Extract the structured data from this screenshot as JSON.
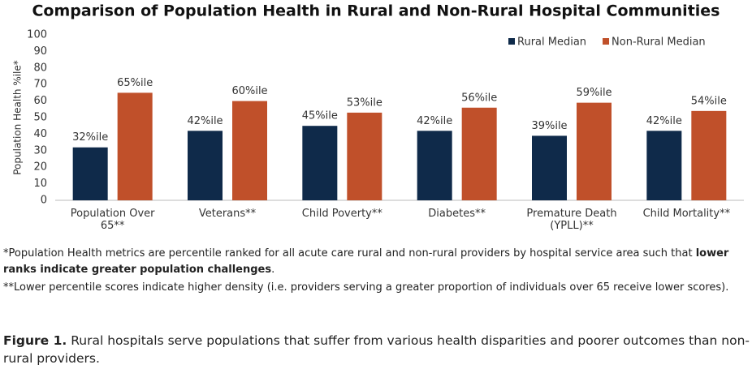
{
  "chart_data": {
    "type": "bar",
    "title": "Comparison of Population Health in Rural and Non-Rural Hospital Communities",
    "y_label": "Population Health %ile*",
    "categories": [
      "Population Over 65**",
      "Veterans**",
      "Child Poverty**",
      "Diabetes**",
      "Premature Death (YPLL)**",
      "Child Mortality**"
    ],
    "series": [
      {
        "name": "Rural Median",
        "color": "#0f2a4a",
        "values": [
          32,
          42,
          45,
          42,
          39,
          42
        ],
        "value_labels": [
          "32%ile",
          "42%ile",
          "45%ile",
          "42%ile",
          "39%ile",
          "42%ile"
        ]
      },
      {
        "name": "Non-Rural Median",
        "color": "#c0502a",
        "values": [
          65,
          60,
          53,
          56,
          59,
          54
        ],
        "value_labels": [
          "65%ile",
          "60%ile",
          "53%ile",
          "56%ile",
          "59%ile",
          "54%ile"
        ]
      }
    ],
    "ylim": [
      0,
      100
    ],
    "yticks": [
      0,
      10,
      20,
      30,
      40,
      50,
      60,
      70,
      80,
      90,
      100
    ],
    "grid": false,
    "legend": "top-right"
  },
  "note1": [
    "*Population Health metrics are percentile ranked for all acute care rural and non-rural providers by hospital service area such that ",
    "lower ranks indicate greater population challenges",
    "."
  ],
  "note2": "**Lower percentile scores indicate higher density (i.e. providers serving a greater proportion of individuals over 65 receive lower scores).",
  "caption": [
    "Figure 1.",
    " Rural hospitals serve populations that suffer from various health disparities and poorer outcomes than non-rural providers."
  ]
}
